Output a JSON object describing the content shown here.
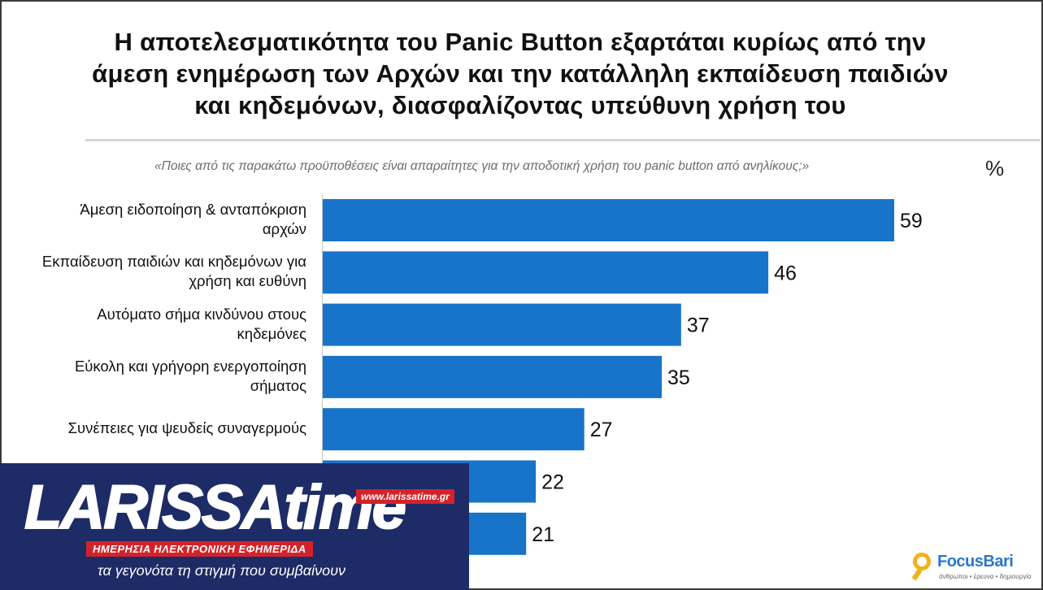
{
  "header": {
    "title_lines": [
      "Η αποτελεσματικότητα του Panic Button εξαρτάται κυρίως από την",
      "άμεση ενημέρωση των Αρχών και την κατάλληλη εκπαίδευση παιδιών",
      "και κηδεμόνων, διασφαλίζοντας υπεύθυνη χρήση του"
    ],
    "question": "«Ποιες από τις παρακάτω προϋποθέσεις είναι απαραίτητες για την αποδοτική χρήση του panic button από ανηλίκους;»",
    "unit": "%"
  },
  "chart_data": {
    "type": "bar",
    "orientation": "horizontal",
    "categories": [
      [
        "Άμεση ειδοποίηση & ανταπόκριση",
        "αρχών"
      ],
      [
        "Εκπαίδευση παιδιών και κηδεμόνων για",
        "χρήση και ευθύνη"
      ],
      [
        "Αυτόματο σήμα κινδύνου στους",
        "κηδεμόνες"
      ],
      [
        "Εύκολη και γρήγορη ενεργοποίηση",
        "σήματος"
      ],
      [
        "Συνέπειες για ψευδείς συναγερμούς"
      ],
      [],
      []
    ],
    "values": [
      59,
      46,
      37,
      35,
      27,
      22,
      21
    ],
    "bar_color": "#1874c8",
    "grid": false,
    "xlim": [
      0,
      59
    ]
  },
  "overlay_logo": {
    "brand": "LARISSAtime",
    "url": "www.larissatime.gr",
    "subtitle": "ΗΜΕΡΗΣΙΑ ΗΛΕΚΤΡΟΝΙΚΗ ΕΦΗΜΕΡΙΔΑ",
    "tagline": "τα γεγονότα τη στιγμή που συμβαίνουν",
    "bg_color": "#1d2b66",
    "accent_color": "#d3232a"
  },
  "source_logo": {
    "name": "FocusBari",
    "slogan": "άνθρωποι • έρευνα • δημιουργία",
    "icon": "magnifier-icon"
  }
}
